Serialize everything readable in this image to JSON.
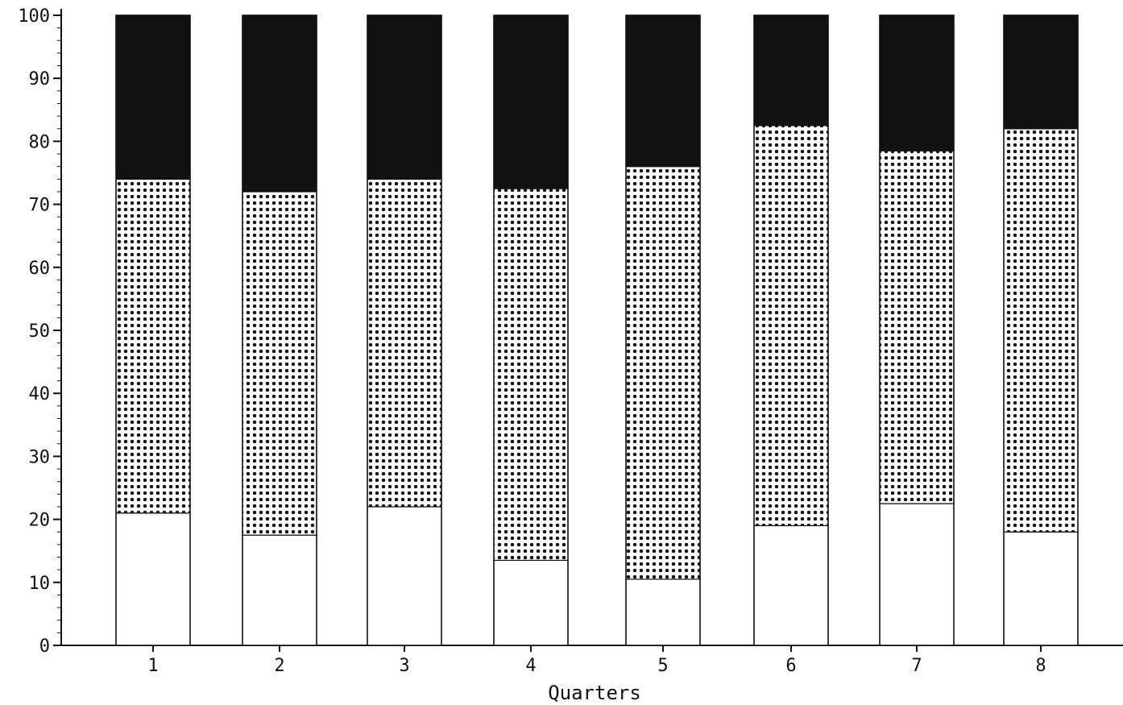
{
  "chart_data": {
    "type": "bar",
    "stacked": true,
    "title": "",
    "xlabel": "Quarters",
    "ylabel": "",
    "categories": [
      "1",
      "2",
      "3",
      "4",
      "5",
      "6",
      "7",
      "8"
    ],
    "ylim": [
      0,
      100
    ],
    "yticks": [
      0,
      10,
      20,
      30,
      40,
      50,
      60,
      70,
      80,
      90,
      100
    ],
    "grid": false,
    "legend": "none",
    "series": [
      {
        "values": [
          21,
          17.5,
          22,
          13.5,
          10.5,
          19,
          22.5,
          18
        ],
        "fill": "white",
        "color": "#ffffff"
      },
      {
        "values": [
          53,
          54.5,
          52,
          59,
          65.5,
          63.5,
          56,
          64
        ],
        "fill": "dotted",
        "color": "#1a1a1a"
      },
      {
        "values": [
          26,
          28,
          26,
          27.5,
          24,
          17.5,
          21.5,
          18
        ],
        "fill": "solid-dark",
        "color": "#111111"
      }
    ]
  }
}
